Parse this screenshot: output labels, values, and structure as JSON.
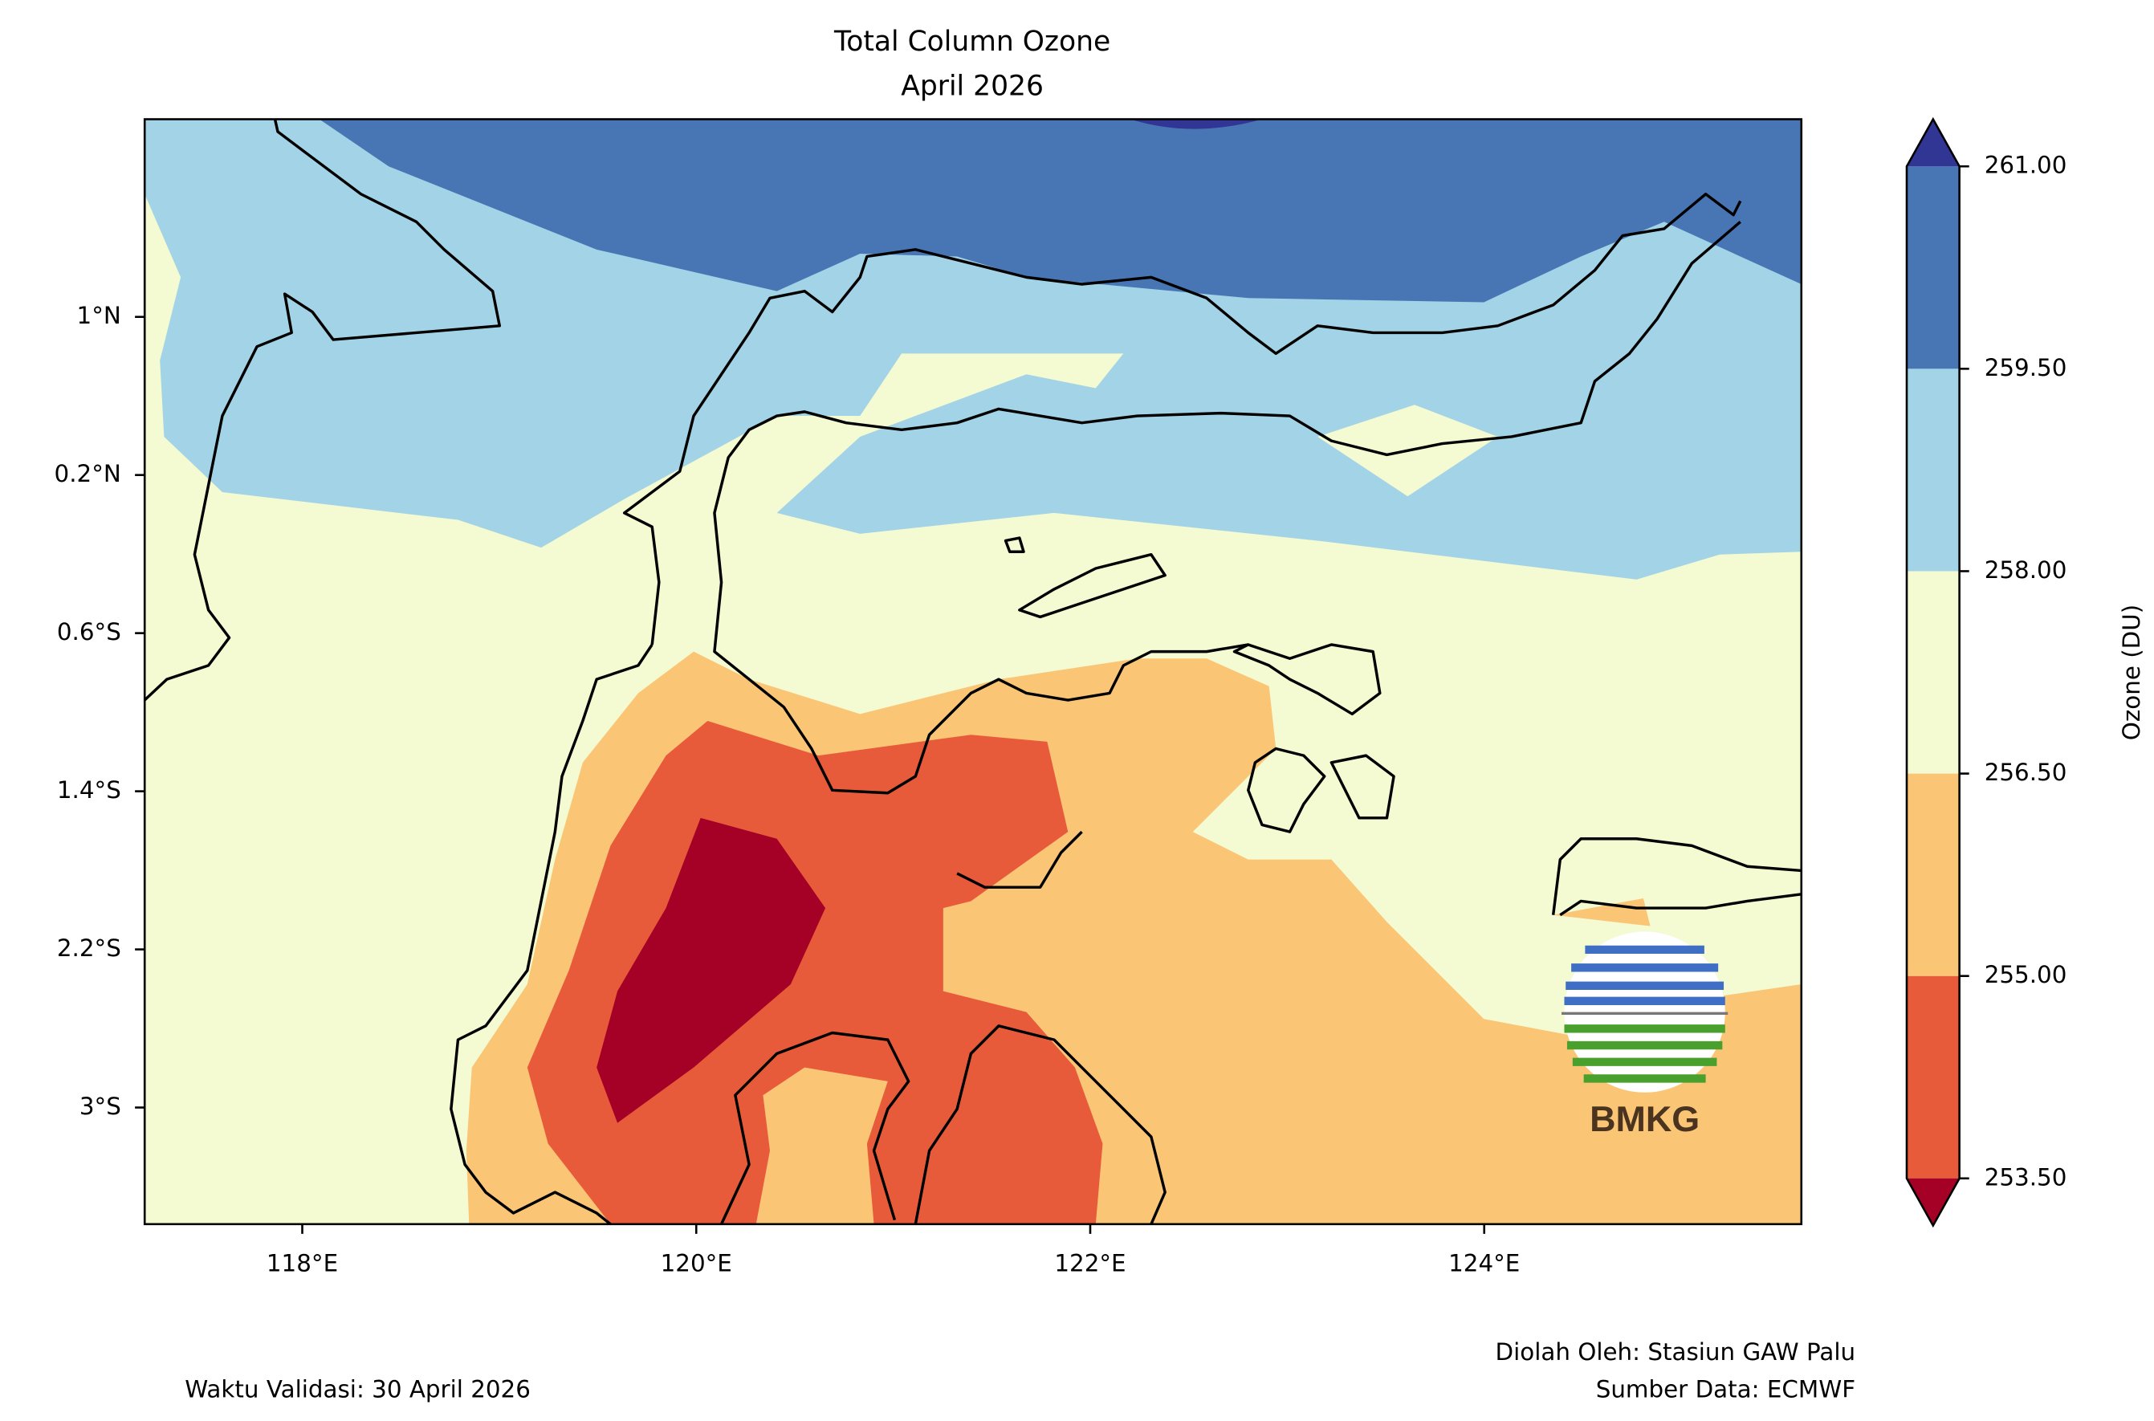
{
  "map": {
    "title": "Total Column Ozone",
    "subtitle": "April 2026",
    "xlim": [
      117.2,
      125.61
    ],
    "ylim": [
      -3.59,
      2.0
    ],
    "xticks": [
      {
        "value": 118,
        "label": "118°E"
      },
      {
        "value": 120,
        "label": "120°E"
      },
      {
        "value": 122,
        "label": "122°E"
      },
      {
        "value": 124,
        "label": "124°E"
      }
    ],
    "yticks": [
      {
        "value": 1,
        "label": "1°N"
      },
      {
        "value": 0.2,
        "label": "0.2°N"
      },
      {
        "value": -0.6,
        "label": "0.6°S"
      },
      {
        "value": -1.4,
        "label": "1.4°S"
      },
      {
        "value": -2.2,
        "label": "2.2°S"
      },
      {
        "value": -3,
        "label": "3°S"
      }
    ],
    "colorbar": {
      "label": "Ozone (DU)",
      "ticks": [
        {
          "value": 253.5,
          "label": "253.50"
        },
        {
          "value": 255,
          "label": "255.00"
        },
        {
          "value": 256.5,
          "label": "256.50"
        },
        {
          "value": 258,
          "label": "258.00"
        },
        {
          "value": 259.5,
          "label": "259.50"
        },
        {
          "value": 261,
          "label": "261.00"
        }
      ],
      "colors": [
        "#e85b3a",
        "#fbc576",
        "#f4fad2",
        "#a3d3e6",
        "#4876b5"
      ],
      "under_color": "#a50026",
      "over_color": "#313695"
    },
    "validity": "Waktu Validasi: 30 April 2026",
    "processed_by": "Diolah Oleh: Stasiun GAW Palu",
    "source": "Sumber Data: ECMWF",
    "logo_text": "BMKG"
  }
}
